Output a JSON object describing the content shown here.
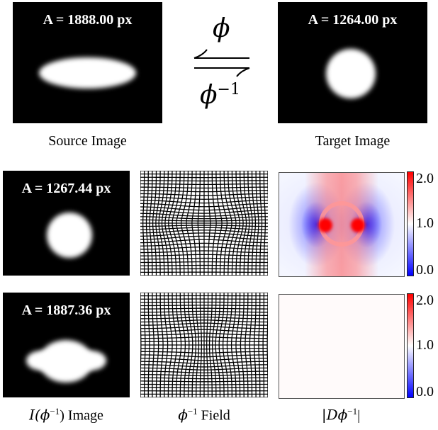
{
  "source": {
    "area": "A = 1888.00 px",
    "caption": "Source Image"
  },
  "target": {
    "area": "A = 1264.00 px",
    "caption": "Target Image"
  },
  "mapping": {
    "forward": "ϕ",
    "inverse_base": "ϕ",
    "inverse_exp": "−1"
  },
  "row1": {
    "area": "A = 1267.44 px"
  },
  "row2": {
    "area": "A = 1887.36 px"
  },
  "colorbar": {
    "ticks": [
      "2.0",
      "1.0",
      "0.0"
    ],
    "colors": [
      "#ff0000",
      "#ffffff",
      "#0000ff"
    ]
  },
  "bottom_captions": {
    "image": {
      "prefix": "I(ϕ",
      "exp": "−1",
      "suffix": ") Image"
    },
    "field": {
      "base": "ϕ",
      "exp": "−1",
      "suffix": " Field"
    },
    "jacobian": {
      "prefix": "|Dϕ",
      "exp": "−1",
      "suffix": "|"
    }
  }
}
